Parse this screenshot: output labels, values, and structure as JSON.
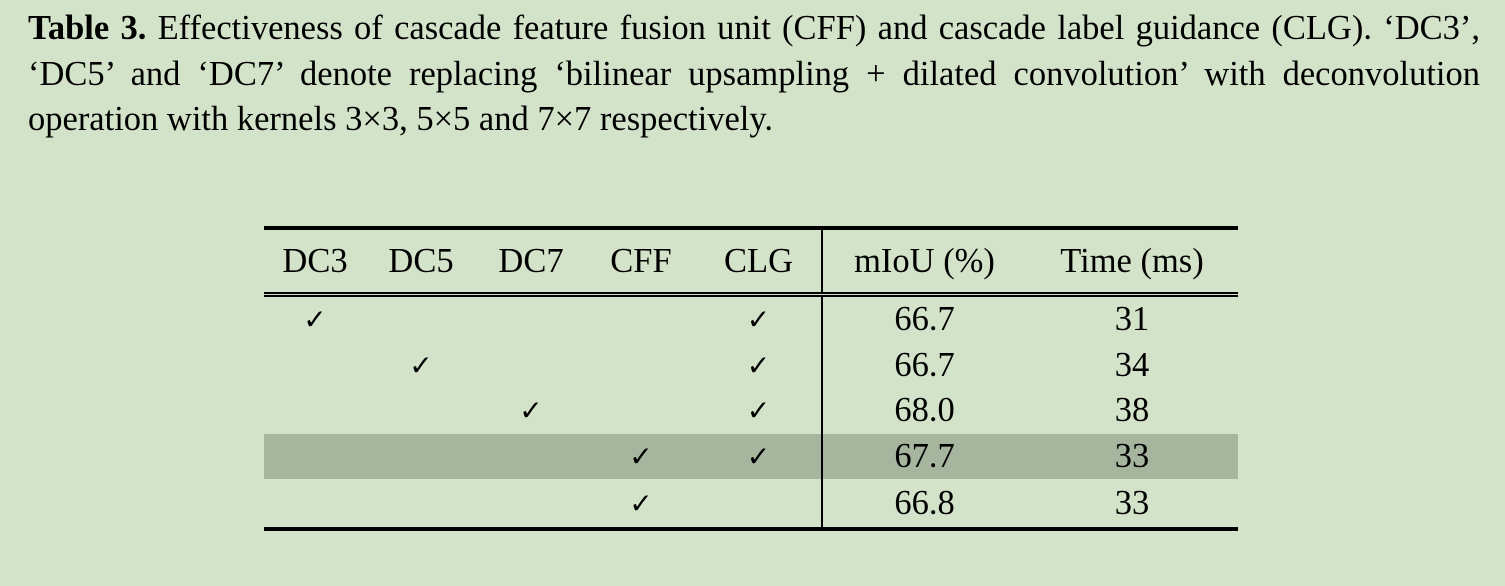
{
  "caption": {
    "label": "Table 3.",
    "text": " Effectiveness of cascade feature fusion unit (CFF) and cascade label guidance (CLG). ‘DC3’, ‘DC5’ and ‘DC7’ denote replacing ‘bilinear upsampling + dilated convolution’ with deconvolution operation with kernels 3×3, 5×5 and 7×7 respectively."
  },
  "table": {
    "headers": [
      "DC3",
      "DC5",
      "DC7",
      "CFF",
      "CLG",
      "mIoU (%)",
      "Time (ms)"
    ],
    "check_symbol": "✓",
    "rows": [
      {
        "dc3": "✓",
        "dc5": "",
        "dc7": "",
        "cff": "",
        "clg": "✓",
        "miou": "66.7",
        "time": "31"
      },
      {
        "dc3": "",
        "dc5": "✓",
        "dc7": "",
        "cff": "",
        "clg": "✓",
        "miou": "66.7",
        "time": "34"
      },
      {
        "dc3": "",
        "dc5": "",
        "dc7": "✓",
        "cff": "",
        "clg": "✓",
        "miou": "68.0",
        "time": "38"
      },
      {
        "dc3": "",
        "dc5": "",
        "dc7": "",
        "cff": "✓",
        "clg": "✓",
        "miou": "67.7",
        "time": "33"
      },
      {
        "dc3": "",
        "dc5": "",
        "dc7": "",
        "cff": "✓",
        "clg": "",
        "miou": "66.8",
        "time": "33"
      }
    ],
    "highlight_row_index": 3,
    "highlight_color": "#a6b59e",
    "background_color": "#d3e3c9"
  }
}
